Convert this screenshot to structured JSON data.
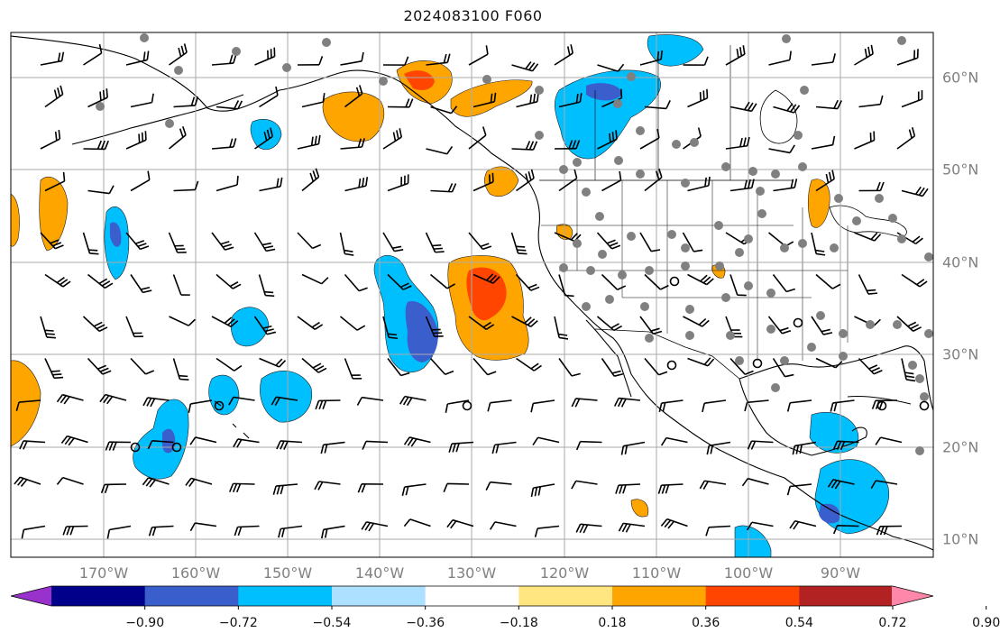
{
  "title": "2024083100 F060",
  "lon_labels": [
    "170°W",
    "160°W",
    "150°W",
    "140°W",
    "130°W",
    "120°W",
    "110°W",
    "100°W",
    "90°W"
  ],
  "lat_labels": [
    "60°N",
    "50°N",
    "40°N",
    "30°N",
    "20°N",
    "10°N"
  ],
  "colorbar": {
    "ticks": [
      "−0.90",
      "−0.72",
      "−0.54",
      "−0.36",
      "−0.18",
      "0.18",
      "0.36",
      "0.54",
      "0.72",
      "0.90"
    ],
    "colors": [
      "#9932CC",
      "#00008B",
      "#3A5FCD",
      "#00BFFF",
      "#ADDFFF",
      "#FFFFFF",
      "#FFE680",
      "#FFA500",
      "#FF4500",
      "#B22222",
      "#FF88AA"
    ]
  },
  "map": {
    "extent_lon": [
      -180,
      -80
    ],
    "extent_lat": [
      8,
      65
    ],
    "gridline_color": "#aaaaaa",
    "coastline_color": "#000000",
    "station_marker_color": "#808080"
  }
}
